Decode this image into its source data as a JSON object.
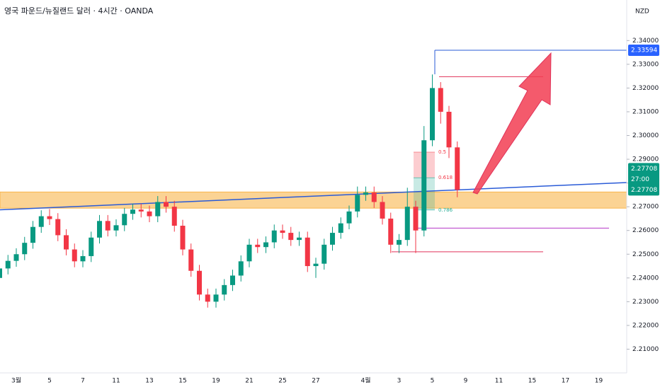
{
  "chart_data": {
    "type": "candlestick",
    "title": "영국 파운드/뉴질랜드 달러 · 4시간 · OANDA",
    "unit": "NZD",
    "up_color": "#089981",
    "down_color": "#f23645",
    "categories": [
      null,
      null,
      "3월",
      null,
      null,
      null,
      "5",
      null,
      null,
      null,
      "7",
      null,
      null,
      null,
      "11",
      null,
      null,
      null,
      "13",
      null,
      null,
      null,
      "15",
      null,
      null,
      null,
      "19",
      null,
      null,
      null,
      "21",
      null,
      null,
      null,
      "25",
      null,
      null,
      null,
      "27",
      null,
      null,
      null,
      null,
      null,
      "4월",
      null,
      null,
      null,
      "3",
      null,
      null,
      null,
      "5",
      null,
      null,
      null,
      "9",
      null,
      null,
      null,
      "11",
      null,
      null,
      null,
      "15",
      null,
      null,
      null,
      "17",
      null,
      null,
      null,
      "19"
    ],
    "ohlc": [
      [
        2.24,
        2.2465,
        2.2375,
        2.244
      ],
      [
        2.244,
        2.2497,
        2.2415,
        2.2472
      ],
      [
        2.2472,
        2.2525,
        2.2447,
        2.25
      ],
      [
        2.25,
        2.2573,
        2.2475,
        2.2548
      ],
      [
        2.2548,
        2.264,
        2.2523,
        2.2615
      ],
      [
        2.2615,
        2.2685,
        2.259,
        2.266
      ],
      [
        2.266,
        2.269,
        2.2623,
        2.2648
      ],
      [
        2.2648,
        2.2673,
        2.2555,
        2.258
      ],
      [
        2.258,
        2.2605,
        2.2495,
        2.252
      ],
      [
        2.252,
        2.2545,
        2.2445,
        2.247
      ],
      [
        2.247,
        2.2517,
        2.2445,
        2.2492
      ],
      [
        2.2492,
        2.2595,
        2.2467,
        2.257
      ],
      [
        2.257,
        2.2665,
        2.2545,
        2.264
      ],
      [
        2.264,
        2.2665,
        2.2575,
        2.26
      ],
      [
        2.26,
        2.2647,
        2.2575,
        2.2622
      ],
      [
        2.2622,
        2.2695,
        2.2597,
        2.267
      ],
      [
        2.267,
        2.2713,
        2.2645,
        2.2688
      ],
      [
        2.2688,
        2.2713,
        2.2655,
        2.268
      ],
      [
        2.268,
        2.2705,
        2.2635,
        2.266
      ],
      [
        2.266,
        2.2745,
        2.2635,
        2.272
      ],
      [
        2.272,
        2.2745,
        2.2675,
        2.27
      ],
      [
        2.27,
        2.2725,
        2.2595,
        2.262
      ],
      [
        2.262,
        2.2645,
        2.2495,
        2.252
      ],
      [
        2.252,
        2.2545,
        2.2405,
        2.243
      ],
      [
        2.243,
        2.2455,
        2.2305,
        2.233
      ],
      [
        2.233,
        2.2355,
        2.2275,
        2.23
      ],
      [
        2.23,
        2.2355,
        2.2275,
        2.233
      ],
      [
        2.233,
        2.2395,
        2.2305,
        2.237
      ],
      [
        2.237,
        2.2435,
        2.2345,
        2.241
      ],
      [
        2.241,
        2.2495,
        2.2385,
        2.247
      ],
      [
        2.247,
        2.2565,
        2.2445,
        2.254
      ],
      [
        2.254,
        2.2565,
        2.2505,
        2.253
      ],
      [
        2.253,
        2.2575,
        2.2505,
        2.255
      ],
      [
        2.255,
        2.2625,
        2.2525,
        2.26
      ],
      [
        2.26,
        2.2625,
        2.2565,
        2.259
      ],
      [
        2.259,
        2.2615,
        2.2535,
        2.256
      ],
      [
        2.256,
        2.2595,
        2.2535,
        2.257
      ],
      [
        2.257,
        2.2595,
        2.2425,
        2.245
      ],
      [
        2.245,
        2.2485,
        2.24,
        2.246
      ],
      [
        2.246,
        2.2565,
        2.2435,
        2.254
      ],
      [
        2.254,
        2.2615,
        2.2515,
        2.259
      ],
      [
        2.259,
        2.2655,
        2.2565,
        2.263
      ],
      [
        2.263,
        2.2705,
        2.2605,
        2.268
      ],
      [
        2.268,
        2.2785,
        2.2655,
        2.275
      ],
      [
        2.275,
        2.2785,
        2.2725,
        2.276
      ],
      [
        2.276,
        2.2785,
        2.2695,
        2.272
      ],
      [
        2.272,
        2.2745,
        2.2625,
        2.265
      ],
      [
        2.265,
        2.2675,
        2.2505,
        2.254
      ],
      [
        2.254,
        2.2585,
        2.2505,
        2.256
      ],
      [
        2.256,
        2.278,
        2.2535,
        2.27
      ],
      [
        2.27,
        2.2725,
        2.2505,
        2.26
      ],
      [
        2.26,
        2.304,
        2.2575,
        2.298
      ],
      [
        2.298,
        2.3257,
        2.2955,
        2.32
      ],
      [
        2.32,
        2.3225,
        2.305,
        2.31
      ],
      [
        2.31,
        2.3125,
        2.2905,
        2.295
      ],
      [
        2.295,
        2.2975,
        2.274,
        2.2771
      ],
      null,
      null,
      null,
      null,
      null,
      null,
      null,
      null,
      null,
      null,
      null,
      null,
      null,
      null,
      null,
      null,
      null
    ],
    "ylim": [
      2.2,
      2.355
    ],
    "yticks": [
      {
        "value": 2.34,
        "label": "2.34000"
      },
      {
        "value": 2.33,
        "label": "2.33000"
      },
      {
        "value": 2.32,
        "label": "2.32000"
      },
      {
        "value": 2.31,
        "label": "2.31000"
      },
      {
        "value": 2.3,
        "label": "2.30000"
      },
      {
        "value": 2.29,
        "label": "2.29000"
      },
      {
        "value": 2.28,
        "label": "2.28000"
      },
      {
        "value": 2.27,
        "label": "2.27000"
      },
      {
        "value": 2.26,
        "label": "2.26000"
      },
      {
        "value": 2.25,
        "label": "2.25000"
      },
      {
        "value": 2.24,
        "label": "2.24000"
      },
      {
        "value": 2.23,
        "label": "2.23000"
      },
      {
        "value": 2.22,
        "label": "2.22000"
      },
      {
        "value": 2.21,
        "label": "2.21000"
      }
    ],
    "zone": [
      2.2694,
      2.2762
    ],
    "zone_color": "#f9b54c",
    "trendline": [
      2.2687,
      2.2802
    ],
    "trendline_color": "#2a5bd7",
    "levels": [
      {
        "value": 2.33594,
        "color": "#2a5bd7"
      },
      {
        "value": 2.3248,
        "color": "#e0335a"
      },
      {
        "value": 2.261,
        "color": "#b434c8"
      },
      {
        "value": 2.251,
        "color": "#e0335a"
      }
    ],
    "fib": [
      {
        "ratio": 0.5,
        "price": 2.293
      },
      {
        "ratio": 0.618,
        "price": 2.2822
      },
      {
        "ratio": 0.786,
        "price": 2.2686
      }
    ],
    "level_tag": {
      "value": 2.33594,
      "label": "2.33594"
    },
    "price_tag": {
      "value": 2.27708,
      "label": "2.27708"
    },
    "countdown": "27:00"
  }
}
